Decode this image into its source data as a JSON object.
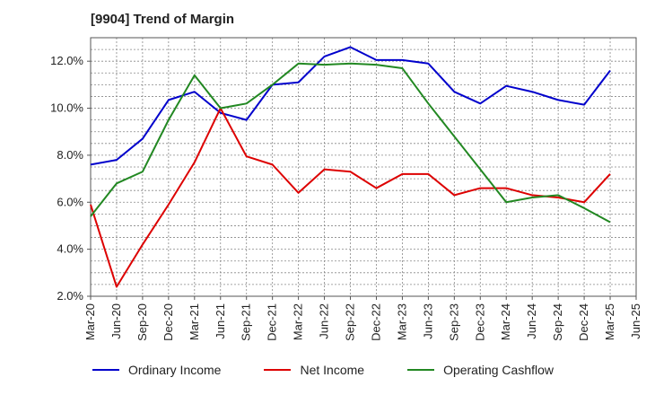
{
  "title": "[9904]  Trend of Margin",
  "chart_data": {
    "type": "line",
    "title": "[9904]  Trend of Margin",
    "xlabel": "",
    "ylabel": "",
    "ylim": [
      2.0,
      13.0
    ],
    "yticks": [
      "2.0%",
      "4.0%",
      "6.0%",
      "8.0%",
      "10.0%",
      "12.0%"
    ],
    "ytick_values": [
      2,
      4,
      6,
      8,
      10,
      12
    ],
    "categories": [
      "Mar-20",
      "Jun-20",
      "Sep-20",
      "Dec-20",
      "Mar-21",
      "Jun-21",
      "Sep-21",
      "Dec-21",
      "Mar-22",
      "Jun-22",
      "Sep-22",
      "Dec-22",
      "Mar-23",
      "Jun-23",
      "Sep-23",
      "Dec-23",
      "Mar-24",
      "Jun-24",
      "Sep-24",
      "Dec-24",
      "Mar-25",
      "Jun-25"
    ],
    "grid": true,
    "legend_position": "bottom",
    "series": [
      {
        "name": "Ordinary Income",
        "color": "#0000cc",
        "values": [
          7.6,
          7.8,
          8.7,
          10.35,
          10.7,
          9.8,
          9.5,
          11.0,
          11.1,
          12.2,
          12.6,
          12.05,
          12.05,
          11.9,
          10.7,
          10.2,
          10.95,
          10.7,
          10.35,
          10.15,
          11.6,
          null
        ]
      },
      {
        "name": "Net Income",
        "color": "#dd0000",
        "values": [
          5.9,
          2.4,
          4.2,
          5.9,
          7.7,
          10.0,
          7.95,
          7.6,
          6.4,
          7.4,
          7.3,
          6.6,
          7.2,
          7.2,
          6.3,
          6.6,
          6.6,
          6.3,
          6.2,
          6.0,
          7.2,
          null
        ]
      },
      {
        "name": "Operating Cashflow",
        "color": "#228822",
        "values": [
          5.4,
          6.8,
          7.3,
          9.5,
          11.4,
          10.0,
          10.2,
          11.0,
          11.9,
          11.85,
          11.9,
          11.85,
          11.7,
          10.2,
          8.8,
          7.4,
          6.0,
          6.2,
          6.3,
          5.75,
          5.15,
          null
        ]
      }
    ]
  }
}
